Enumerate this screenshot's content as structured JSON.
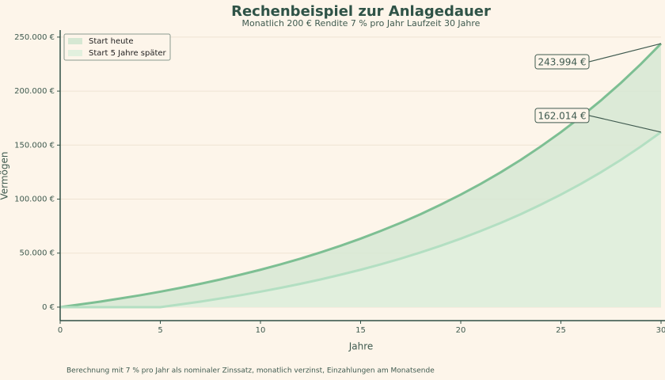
{
  "chart_data": {
    "type": "area",
    "title": "Rechenbeispiel zur Anlagedauer",
    "subtitle": "Monatlich 200 €   Rendite 7 % pro Jahr   Laufzeit 30 Jahre",
    "x_label": "Jahre",
    "y_label": "Vermögen",
    "footnote": "Berechnung mit 7 % pro Jahr als nominaler Zinssatz, monatlich verzinst, Einzahlungen am Monatsende",
    "x": [
      0,
      1,
      2,
      3,
      4,
      5,
      6,
      7,
      8,
      9,
      10,
      11,
      12,
      13,
      14,
      15,
      16,
      17,
      18,
      19,
      20,
      21,
      22,
      23,
      24,
      25,
      26,
      27,
      28,
      29,
      30
    ],
    "series": [
      {
        "name": "Start heute",
        "color": "#7dbf93",
        "fill": "#d6e8d3",
        "values": [
          0,
          2500,
          5100,
          8000,
          11000,
          14300,
          17800,
          21600,
          25600,
          30000,
          34600,
          39600,
          44900,
          50700,
          56800,
          63400,
          70500,
          78000,
          86100,
          94900,
          104200,
          114200,
          124900,
          136400,
          148800,
          162000,
          176200,
          191400,
          207700,
          225200,
          243994
        ],
        "value_labels": [
          null,
          null,
          null,
          null,
          null,
          null,
          null,
          null,
          null,
          null,
          null,
          null,
          null,
          null,
          null,
          null,
          null,
          null,
          null,
          null,
          null,
          null,
          null,
          null,
          null,
          null,
          null,
          null,
          null,
          null,
          "243.994 €"
        ]
      },
      {
        "name": "Start 5 Jahre später",
        "color": "#b3dfc2",
        "fill": "#e2f0de",
        "values": [
          0,
          0,
          0,
          0,
          0,
          0,
          2500,
          5100,
          8000,
          11000,
          14300,
          17800,
          21600,
          25600,
          30000,
          34600,
          39600,
          44900,
          50700,
          56800,
          63400,
          70500,
          78000,
          86100,
          94900,
          104200,
          114200,
          124900,
          136400,
          148800,
          162014
        ],
        "value_labels": [
          null,
          null,
          null,
          null,
          null,
          null,
          null,
          null,
          null,
          null,
          null,
          null,
          null,
          null,
          null,
          null,
          null,
          null,
          null,
          null,
          null,
          null,
          null,
          null,
          null,
          null,
          null,
          null,
          null,
          null,
          "162.014 €"
        ]
      }
    ],
    "xlim": [
      0,
      30
    ],
    "xticks": [
      0,
      5,
      10,
      15,
      20,
      25,
      30
    ],
    "ylim": [
      -12500,
      256500
    ],
    "yticks": [
      {
        "value": 0,
        "label": "0 €"
      },
      {
        "value": 50000,
        "label": "50.000 €"
      },
      {
        "value": 100000,
        "label": "100.000 €"
      },
      {
        "value": 150000,
        "label": "150.000 €"
      },
      {
        "value": 200000,
        "label": "200.000 €"
      },
      {
        "value": 250000,
        "label": "250.000 €"
      }
    ],
    "grid": true,
    "legend": "upper left"
  }
}
